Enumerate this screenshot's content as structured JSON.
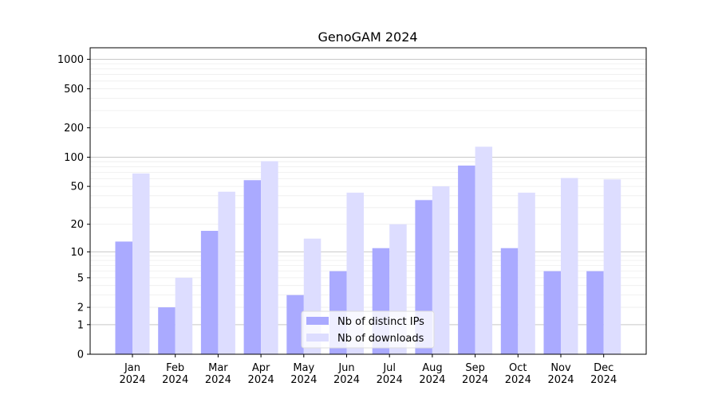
{
  "chart_data": {
    "type": "bar",
    "title": "GenoGAM 2024",
    "xlabel": "",
    "ylabel": "",
    "yscale": "log10(1+y)",
    "ylim": [
      0,
      1300
    ],
    "yticks": [
      0,
      1,
      2,
      5,
      10,
      20,
      50,
      100,
      200,
      500,
      1000
    ],
    "grid": true,
    "legend_position": "lower-center",
    "categories": [
      "Jan\n2024",
      "Feb\n2024",
      "Mar\n2024",
      "Apr\n2024",
      "May\n2024",
      "Jun\n2024",
      "Jul\n2024",
      "Aug\n2024",
      "Sep\n2024",
      "Oct\n2024",
      "Nov\n2024",
      "Dec\n2024"
    ],
    "series": [
      {
        "name": "Nb of distinct IPs",
        "color": "#aaaaff",
        "values": [
          13,
          2,
          17,
          58,
          3,
          6,
          11,
          36,
          82,
          11,
          6,
          6
        ]
      },
      {
        "name": "Nb of downloads",
        "color": "#ddddff",
        "values": [
          68,
          5,
          44,
          91,
          14,
          43,
          20,
          50,
          128,
          43,
          61,
          59
        ]
      }
    ]
  }
}
